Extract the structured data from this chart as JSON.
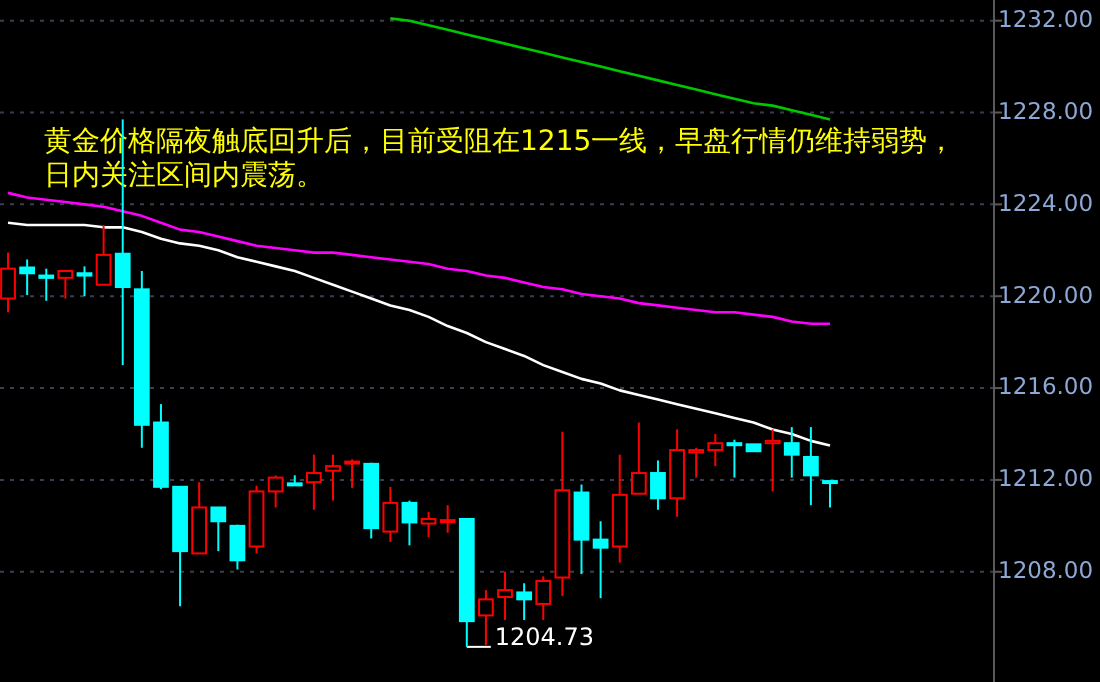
{
  "chart_data": {
    "type": "candlestick",
    "categories": [
      null,
      null,
      null,
      null,
      null,
      null,
      null,
      null,
      null,
      null,
      null,
      null,
      null,
      null,
      null,
      null,
      null,
      null,
      null,
      null,
      null,
      null,
      null,
      null,
      null,
      null,
      null,
      null,
      null,
      null,
      null,
      null,
      null,
      null,
      null,
      null,
      null,
      null,
      null,
      null,
      null,
      null,
      null,
      null
    ],
    "ohlc": [
      [
        1219.9,
        1221.9,
        1219.3,
        1221.2
      ],
      [
        1221.25,
        1221.6,
        1220.05,
        1221.0
      ],
      [
        1220.9,
        1221.2,
        1219.8,
        1220.8
      ],
      [
        1220.8,
        1221.1,
        1219.9,
        1221.1
      ],
      [
        1221.0,
        1221.3,
        1220.0,
        1220.9
      ],
      [
        1220.5,
        1223.1,
        1220.5,
        1221.8
      ],
      [
        1221.85,
        1227.7,
        1217.0,
        1220.4
      ],
      [
        1220.3,
        1221.1,
        1213.4,
        1214.4
      ],
      [
        1214.5,
        1215.3,
        1211.6,
        1211.7
      ],
      [
        1211.7,
        1211.7,
        1206.5,
        1208.9
      ],
      [
        1208.8,
        1211.9,
        1208.8,
        1210.8
      ],
      [
        1210.8,
        1210.8,
        1208.9,
        1210.2
      ],
      [
        1210.0,
        1210.05,
        1208.1,
        1208.5
      ],
      [
        1209.1,
        1211.75,
        1208.8,
        1211.5
      ],
      [
        1211.5,
        1212.2,
        1210.8,
        1212.1
      ],
      [
        1211.85,
        1212.2,
        1211.8,
        1211.8
      ],
      [
        1211.9,
        1213.1,
        1210.7,
        1212.3
      ],
      [
        1212.4,
        1213.1,
        1211.1,
        1212.6
      ],
      [
        1212.8,
        1212.9,
        1211.65,
        1212.8
      ],
      [
        1212.7,
        1212.75,
        1209.45,
        1209.9
      ],
      [
        1209.75,
        1211.7,
        1209.3,
        1211.0
      ],
      [
        1211.0,
        1211.1,
        1209.15,
        1210.15
      ],
      [
        1210.1,
        1210.6,
        1209.5,
        1210.3
      ],
      [
        1210.2,
        1210.9,
        1209.7,
        1210.25
      ],
      [
        1210.3,
        1210.3,
        1204.73,
        1205.85
      ],
      [
        1206.1,
        1207.2,
        1204.8,
        1206.8
      ],
      [
        1206.9,
        1208.0,
        1205.9,
        1207.2
      ],
      [
        1207.1,
        1207.5,
        1205.9,
        1206.8
      ],
      [
        1206.6,
        1207.8,
        1205.9,
        1207.6
      ],
      [
        1207.75,
        1214.1,
        1206.95,
        1211.55
      ],
      [
        1211.45,
        1211.8,
        1207.9,
        1209.4
      ],
      [
        1209.4,
        1210.2,
        1206.85,
        1209.05
      ],
      [
        1209.1,
        1213.1,
        1208.4,
        1211.35
      ],
      [
        1211.4,
        1214.5,
        1211.4,
        1212.3
      ],
      [
        1212.3,
        1212.85,
        1210.7,
        1211.2
      ],
      [
        1211.2,
        1214.2,
        1210.4,
        1213.3
      ],
      [
        1213.2,
        1213.4,
        1212.1,
        1213.3
      ],
      [
        1213.3,
        1214.0,
        1212.6,
        1213.6
      ],
      [
        1213.6,
        1213.75,
        1212.1,
        1213.55
      ],
      [
        1213.55,
        1213.55,
        1213.25,
        1213.25
      ],
      [
        1213.6,
        1214.2,
        1211.5,
        1213.7
      ],
      [
        1213.6,
        1214.3,
        1212.1,
        1213.1
      ],
      [
        1213.0,
        1214.3,
        1210.9,
        1212.2
      ],
      [
        1211.95,
        1211.95,
        1210.8,
        1211.9
      ]
    ],
    "colors": [
      "#ff0000",
      "#00ffff",
      "#00ffff",
      "#ff0000",
      "#00ffff",
      "#ff0000",
      "#00ffff",
      "#00ffff",
      "#00ffff",
      "#00ffff",
      "#ff0000",
      "#00ffff",
      "#00ffff",
      "#ff0000",
      "#ff0000",
      "#00ffff",
      "#ff0000",
      "#ff0000",
      "#ff0000",
      "#00ffff",
      "#ff0000",
      "#00ffff",
      "#ff0000",
      "#ff0000",
      "#00ffff",
      "#ff0000",
      "#ff0000",
      "#00ffff",
      "#ff0000",
      "#ff0000",
      "#00ffff",
      "#00ffff",
      "#ff0000",
      "#ff0000",
      "#00ffff",
      "#ff0000",
      "#ff0000",
      "#ff0000",
      "#00ffff",
      "#00ffff",
      "#ff0000",
      "#00ffff",
      "#00ffff",
      "#00ffff"
    ],
    "series": [
      {
        "type": "line",
        "color": "#ffffff",
        "values": [
          1223.2,
          1223.1,
          1223.1,
          1223.1,
          1223.1,
          1223.0,
          1223.0,
          1222.8,
          1222.5,
          1222.3,
          1222.2,
          1222.0,
          1221.7,
          1221.5,
          1221.3,
          1221.1,
          1220.8,
          1220.5,
          1220.2,
          1219.9,
          1219.6,
          1219.4,
          1219.1,
          1218.7,
          1218.4,
          1218.0,
          1217.7,
          1217.4,
          1217.0,
          1216.7,
          1216.4,
          1216.2,
          1215.9,
          1215.7,
          1215.5,
          1215.3,
          1215.1,
          1214.9,
          1214.7,
          1214.5,
          1214.2,
          1214.0,
          1213.7,
          1213.5
        ]
      },
      {
        "type": "line",
        "color": "#ff00ff",
        "values": [
          1224.5,
          1224.3,
          1224.2,
          1224.1,
          1224.0,
          1223.9,
          1223.7,
          1223.5,
          1223.2,
          1222.9,
          1222.8,
          1222.6,
          1222.4,
          1222.2,
          1222.1,
          1222.0,
          1221.9,
          1221.9,
          1221.8,
          1221.7,
          1221.6,
          1221.5,
          1221.4,
          1221.2,
          1221.1,
          1220.9,
          1220.8,
          1220.6,
          1220.4,
          1220.3,
          1220.1,
          1220.0,
          1219.9,
          1219.7,
          1219.6,
          1219.5,
          1219.4,
          1219.3,
          1219.3,
          1219.2,
          1219.1,
          1218.9,
          1218.8,
          1218.8
        ]
      },
      {
        "type": "line",
        "color": "#00c800",
        "values": [
          null,
          null,
          null,
          null,
          null,
          null,
          null,
          null,
          null,
          null,
          null,
          null,
          null,
          null,
          null,
          null,
          null,
          null,
          null,
          null,
          1232.1,
          1232.0,
          1231.8,
          1231.6,
          1231.4,
          1231.2,
          1231.0,
          1230.8,
          1230.6,
          1230.4,
          1230.2,
          1230.0,
          1229.8,
          1229.6,
          1229.4,
          1229.2,
          1229.0,
          1228.8,
          1228.6,
          1228.4,
          1228.3,
          1228.1,
          1227.9,
          1227.7
        ]
      }
    ],
    "ylim": [
      1203.2,
      1232.9
    ],
    "yticks": [
      {
        "value": 1208,
        "label": "1208.00"
      },
      {
        "value": 1212,
        "label": "1212.00"
      },
      {
        "value": 1216,
        "label": "1216.00"
      },
      {
        "value": 1220,
        "label": "1220.00"
      },
      {
        "value": 1224,
        "label": "1224.00"
      },
      {
        "value": 1228,
        "label": "1228.00"
      },
      {
        "value": 1232,
        "label": "1232.00"
      }
    ],
    "grid": "y",
    "annotations": [
      "黄金价格隔夜触底回升后，目前受阻在1215一线，早盘行情仍维持弱势，日内关注区间内震荡。",
      "1204.73"
    ]
  }
}
